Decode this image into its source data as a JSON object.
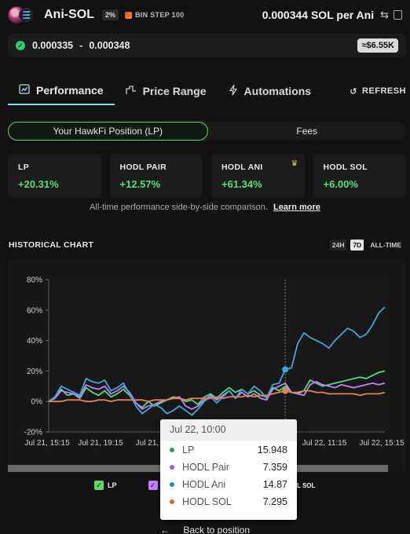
{
  "header": {
    "pair": "Ani-SOL",
    "fee": "2%",
    "bin_step": "BIN STEP 100",
    "price": "0.000344 SOL per Ani",
    "swap_icon": "swap-icon",
    "copy_icon": "copy-icon"
  },
  "range": {
    "low": "0.000335",
    "separator": "-",
    "high": "0.000348",
    "value": "≈$6.55K",
    "status_color": "#2ecc71"
  },
  "tabs": [
    {
      "label": "Performance",
      "icon": "chart-icon",
      "active": true
    },
    {
      "label": "Price Range",
      "icon": "range-icon",
      "active": false
    },
    {
      "label": "Automations",
      "icon": "bolt-icon",
      "active": false
    }
  ],
  "refresh_label": "REFRESH",
  "segments": [
    {
      "label": "Your HawkFi Position (LP)",
      "active": true
    },
    {
      "label": "Fees",
      "active": false
    }
  ],
  "stats": [
    {
      "label": "LP",
      "value": "+20.31%"
    },
    {
      "label": "HODL PAIR",
      "value": "+12.57%"
    },
    {
      "label": "HODL ANI",
      "value": "+61.34%",
      "best": true
    },
    {
      "label": "HODL SOL",
      "value": "+6.00%"
    }
  ],
  "compare_text": "All-time performance side-by-side comparison.",
  "learn_more": "Learn more",
  "historical": {
    "title": "HISTORICAL CHART",
    "ranges": [
      {
        "label": "24H",
        "state": "boxed"
      },
      {
        "label": "7D",
        "state": "active"
      },
      {
        "label": "ALL-TIME",
        "state": "normal"
      }
    ]
  },
  "chart_data": {
    "type": "line",
    "ylim": [
      -20,
      80
    ],
    "y_ticks": [
      "80%",
      "60%",
      "40%",
      "20%",
      "0%",
      "-20%"
    ],
    "x_ticks": [
      "Jul 21, 15:15",
      "Jul 21, 19:15",
      "Jul 21, ...",
      "Jul 22, 11:15",
      "Jul 22, 15:15"
    ],
    "series": [
      {
        "name": "LP",
        "color": "#4ae07a",
        "values": [
          0,
          3,
          8,
          4,
          5,
          2,
          9,
          6,
          4,
          7,
          3,
          5,
          8,
          4,
          -1,
          -4,
          0,
          -3,
          -1,
          1,
          3,
          2,
          0,
          1,
          -2,
          3,
          5,
          2,
          6,
          9,
          6,
          8,
          5,
          7,
          4,
          3,
          9,
          7,
          10,
          6,
          5,
          7,
          14,
          12,
          10,
          11,
          12,
          13,
          14,
          15,
          16,
          15,
          17,
          19,
          20
        ]
      },
      {
        "name": "HODL Pair",
        "color": "#c77dff",
        "values": [
          0,
          2,
          7,
          6,
          5,
          3,
          11,
          9,
          8,
          10,
          5,
          7,
          10,
          6,
          -1,
          -5,
          -3,
          -2,
          0,
          1,
          2,
          3,
          -3,
          -5,
          -3,
          1,
          4,
          1,
          4,
          7,
          2,
          6,
          3,
          5,
          2,
          1,
          8,
          10,
          12,
          6,
          5,
          4,
          11,
          13,
          11,
          10,
          9,
          11,
          10,
          9,
          10,
          11,
          12,
          11,
          12
        ]
      },
      {
        "name": "HODL Ani",
        "color": "#3ba7d9",
        "values": [
          0,
          3,
          10,
          8,
          6,
          4,
          15,
          13,
          12,
          14,
          7,
          9,
          12,
          5,
          -3,
          -8,
          -5,
          -2,
          -4,
          -8,
          -6,
          -3,
          -6,
          -9,
          -5,
          0,
          3,
          -1,
          3,
          7,
          2,
          8,
          5,
          10,
          7,
          2,
          11,
          12,
          21,
          22,
          38,
          45,
          42,
          40,
          38,
          35,
          40,
          44,
          48,
          46,
          42,
          44,
          50,
          58,
          62
        ]
      },
      {
        "name": "HODL SOL",
        "color": "#e8834a",
        "values": [
          0,
          0,
          0,
          1,
          1,
          1,
          0,
          0,
          1,
          1,
          0,
          1,
          1,
          1,
          1,
          1,
          0,
          1,
          1,
          1,
          2,
          2,
          1,
          2,
          2,
          2,
          2,
          3,
          2,
          3,
          3,
          3,
          4,
          3,
          4,
          4,
          5,
          6,
          7,
          6,
          6,
          7,
          7,
          6,
          6,
          5,
          5,
          5,
          5,
          5,
          4,
          5,
          5,
          5,
          6
        ]
      }
    ]
  },
  "legend": [
    {
      "label": "LP",
      "color": "#5fd86c"
    },
    {
      "label": "HO",
      "color": "#c77dff"
    }
  ],
  "legend_tail": "L SOL",
  "tooltip": {
    "title": "Jul 22, 10:00",
    "rows": [
      {
        "name": "LP",
        "value": "15.948",
        "color": "#2e9e4f"
      },
      {
        "name": "HODL Pair",
        "value": "7.359",
        "color": "#a855f7"
      },
      {
        "name": "HODL Ani",
        "value": "14.87",
        "color": "#2b89b8"
      },
      {
        "name": "HODL SOL",
        "value": "7.295",
        "color": "#d2691e"
      }
    ]
  },
  "back_label": "Back to position"
}
